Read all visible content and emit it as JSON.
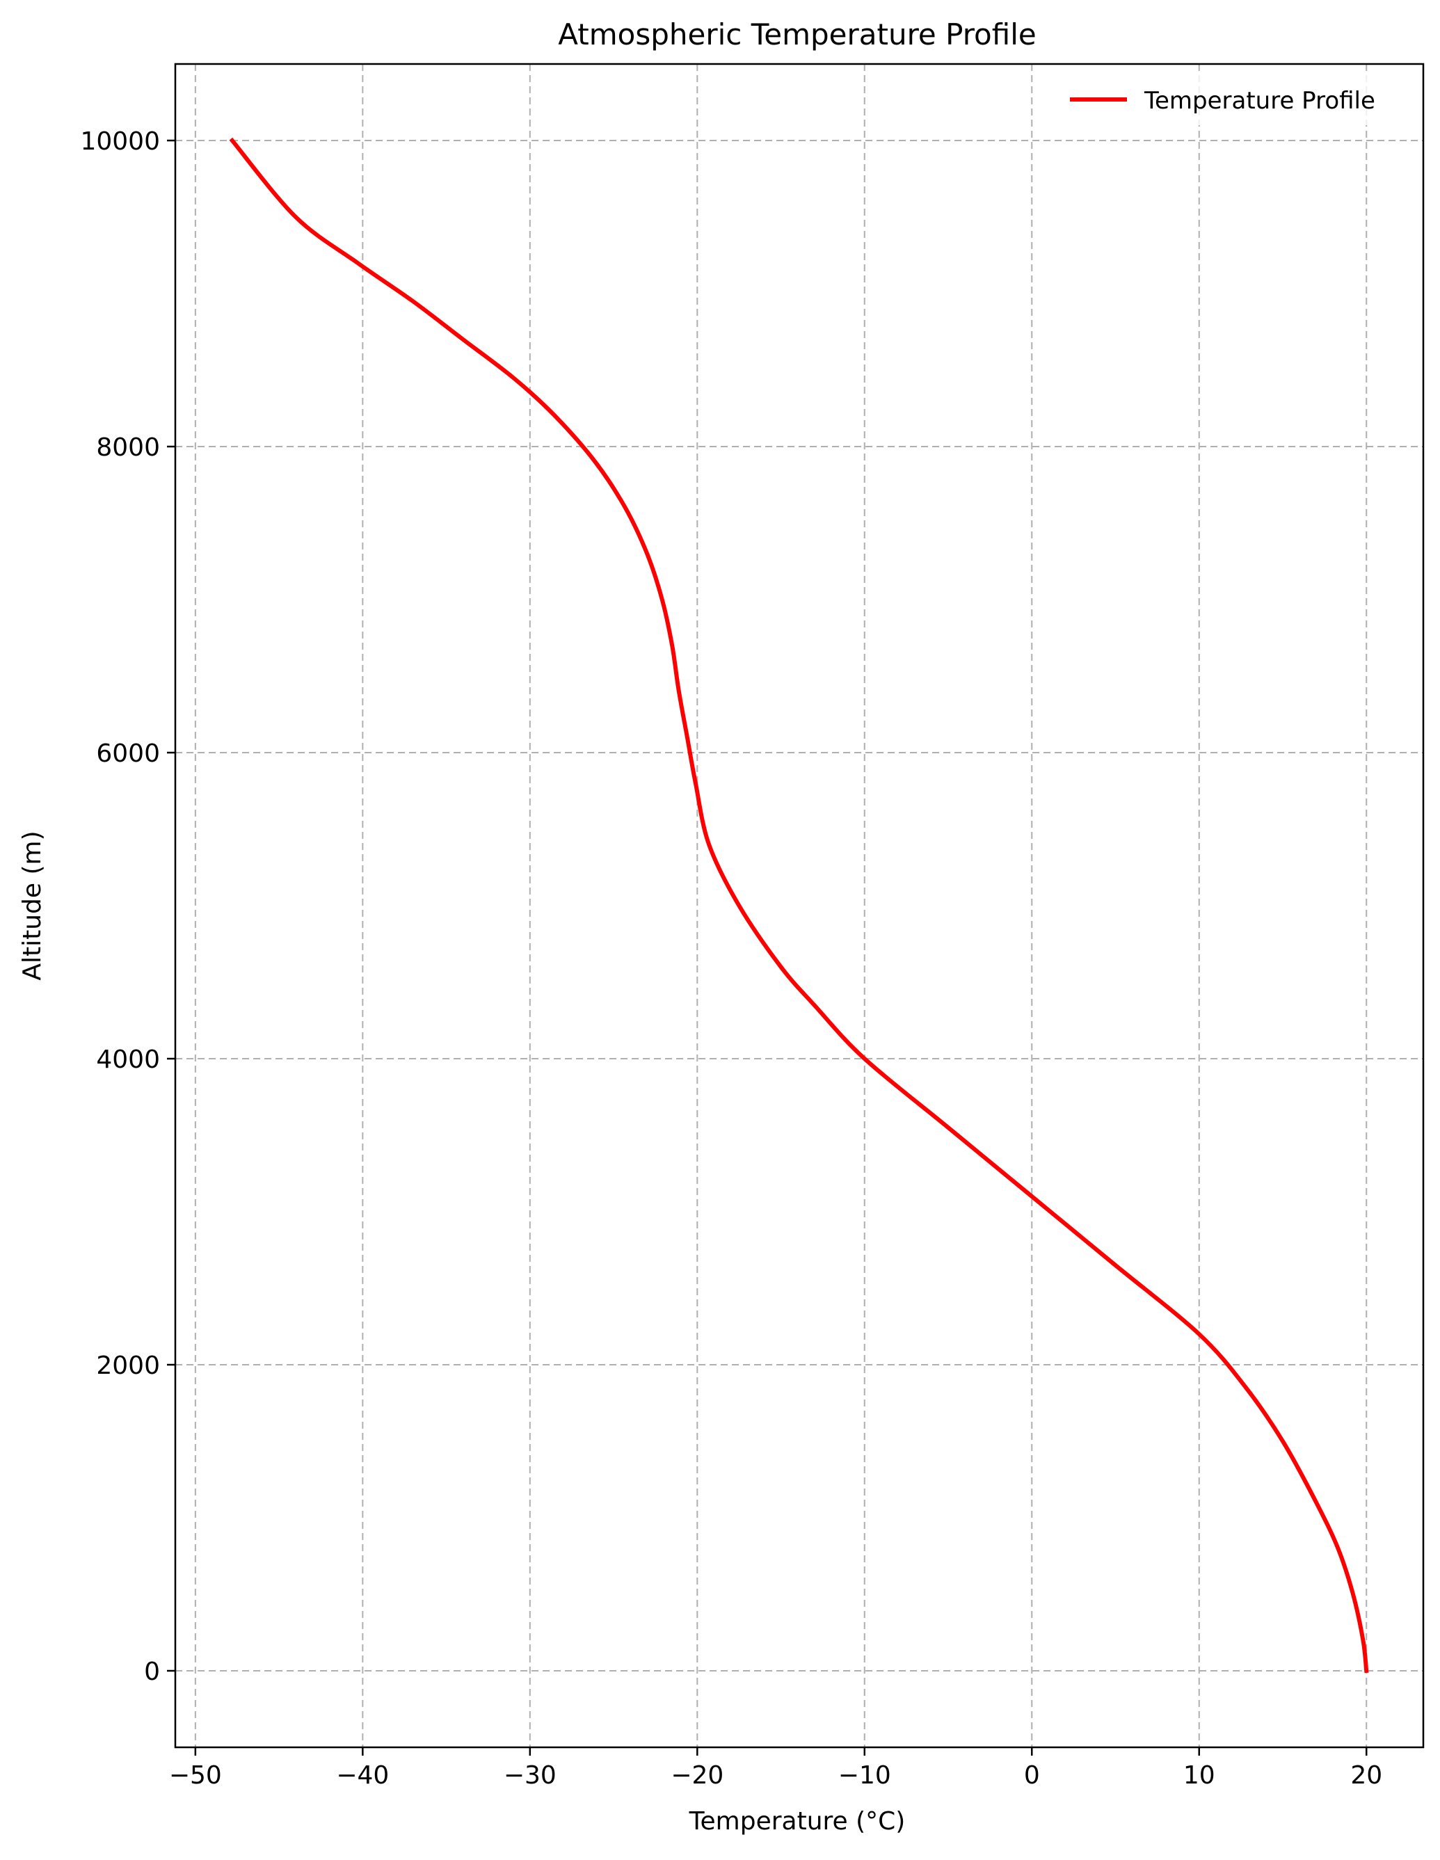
{
  "chart_data": {
    "type": "line",
    "title": "Atmospheric Temperature Profile",
    "xlabel": "Temperature (°C)",
    "ylabel": "Altitude (m)",
    "xlim": [
      -51.2,
      23.4
    ],
    "ylim": [
      -500,
      10500
    ],
    "xticks": [
      -50,
      -40,
      -30,
      -20,
      -10,
      0,
      10,
      20
    ],
    "xtick_labels": [
      "−50",
      "−40",
      "−30",
      "−20",
      "−10",
      "0",
      "10",
      "20"
    ],
    "yticks": [
      0,
      2000,
      4000,
      6000,
      8000,
      10000
    ],
    "ytick_labels": [
      "0",
      "2000",
      "4000",
      "6000",
      "8000",
      "10000"
    ],
    "grid": true,
    "grid_style": "dashed",
    "legend_position": "top-right",
    "series": [
      {
        "name": "Temperature Profile",
        "color": "#ff0000",
        "x": [
          20.0,
          19.8,
          19.2,
          18.3,
          17.0,
          15.0,
          12.8,
          10.0,
          5.0,
          0.0,
          -5.0,
          -10.0,
          -13.0,
          -15.0,
          -17.5,
          -19.3,
          -20.1,
          -20.6,
          -21.1,
          -21.5,
          -22.1,
          -23.0,
          -24.3,
          -26.1,
          -28.5,
          -31.0,
          -34.0,
          -37.0,
          -40.3,
          -44.0,
          -47.8
        ],
        "y": [
          0,
          200,
          500,
          800,
          1100,
          1500,
          1850,
          2200,
          2650,
          3100,
          3550,
          4000,
          4350,
          4600,
          5000,
          5400,
          5800,
          6100,
          6400,
          6700,
          7000,
          7300,
          7600,
          7900,
          8200,
          8450,
          8700,
          8950,
          9200,
          9500,
          10000
        ]
      }
    ]
  }
}
